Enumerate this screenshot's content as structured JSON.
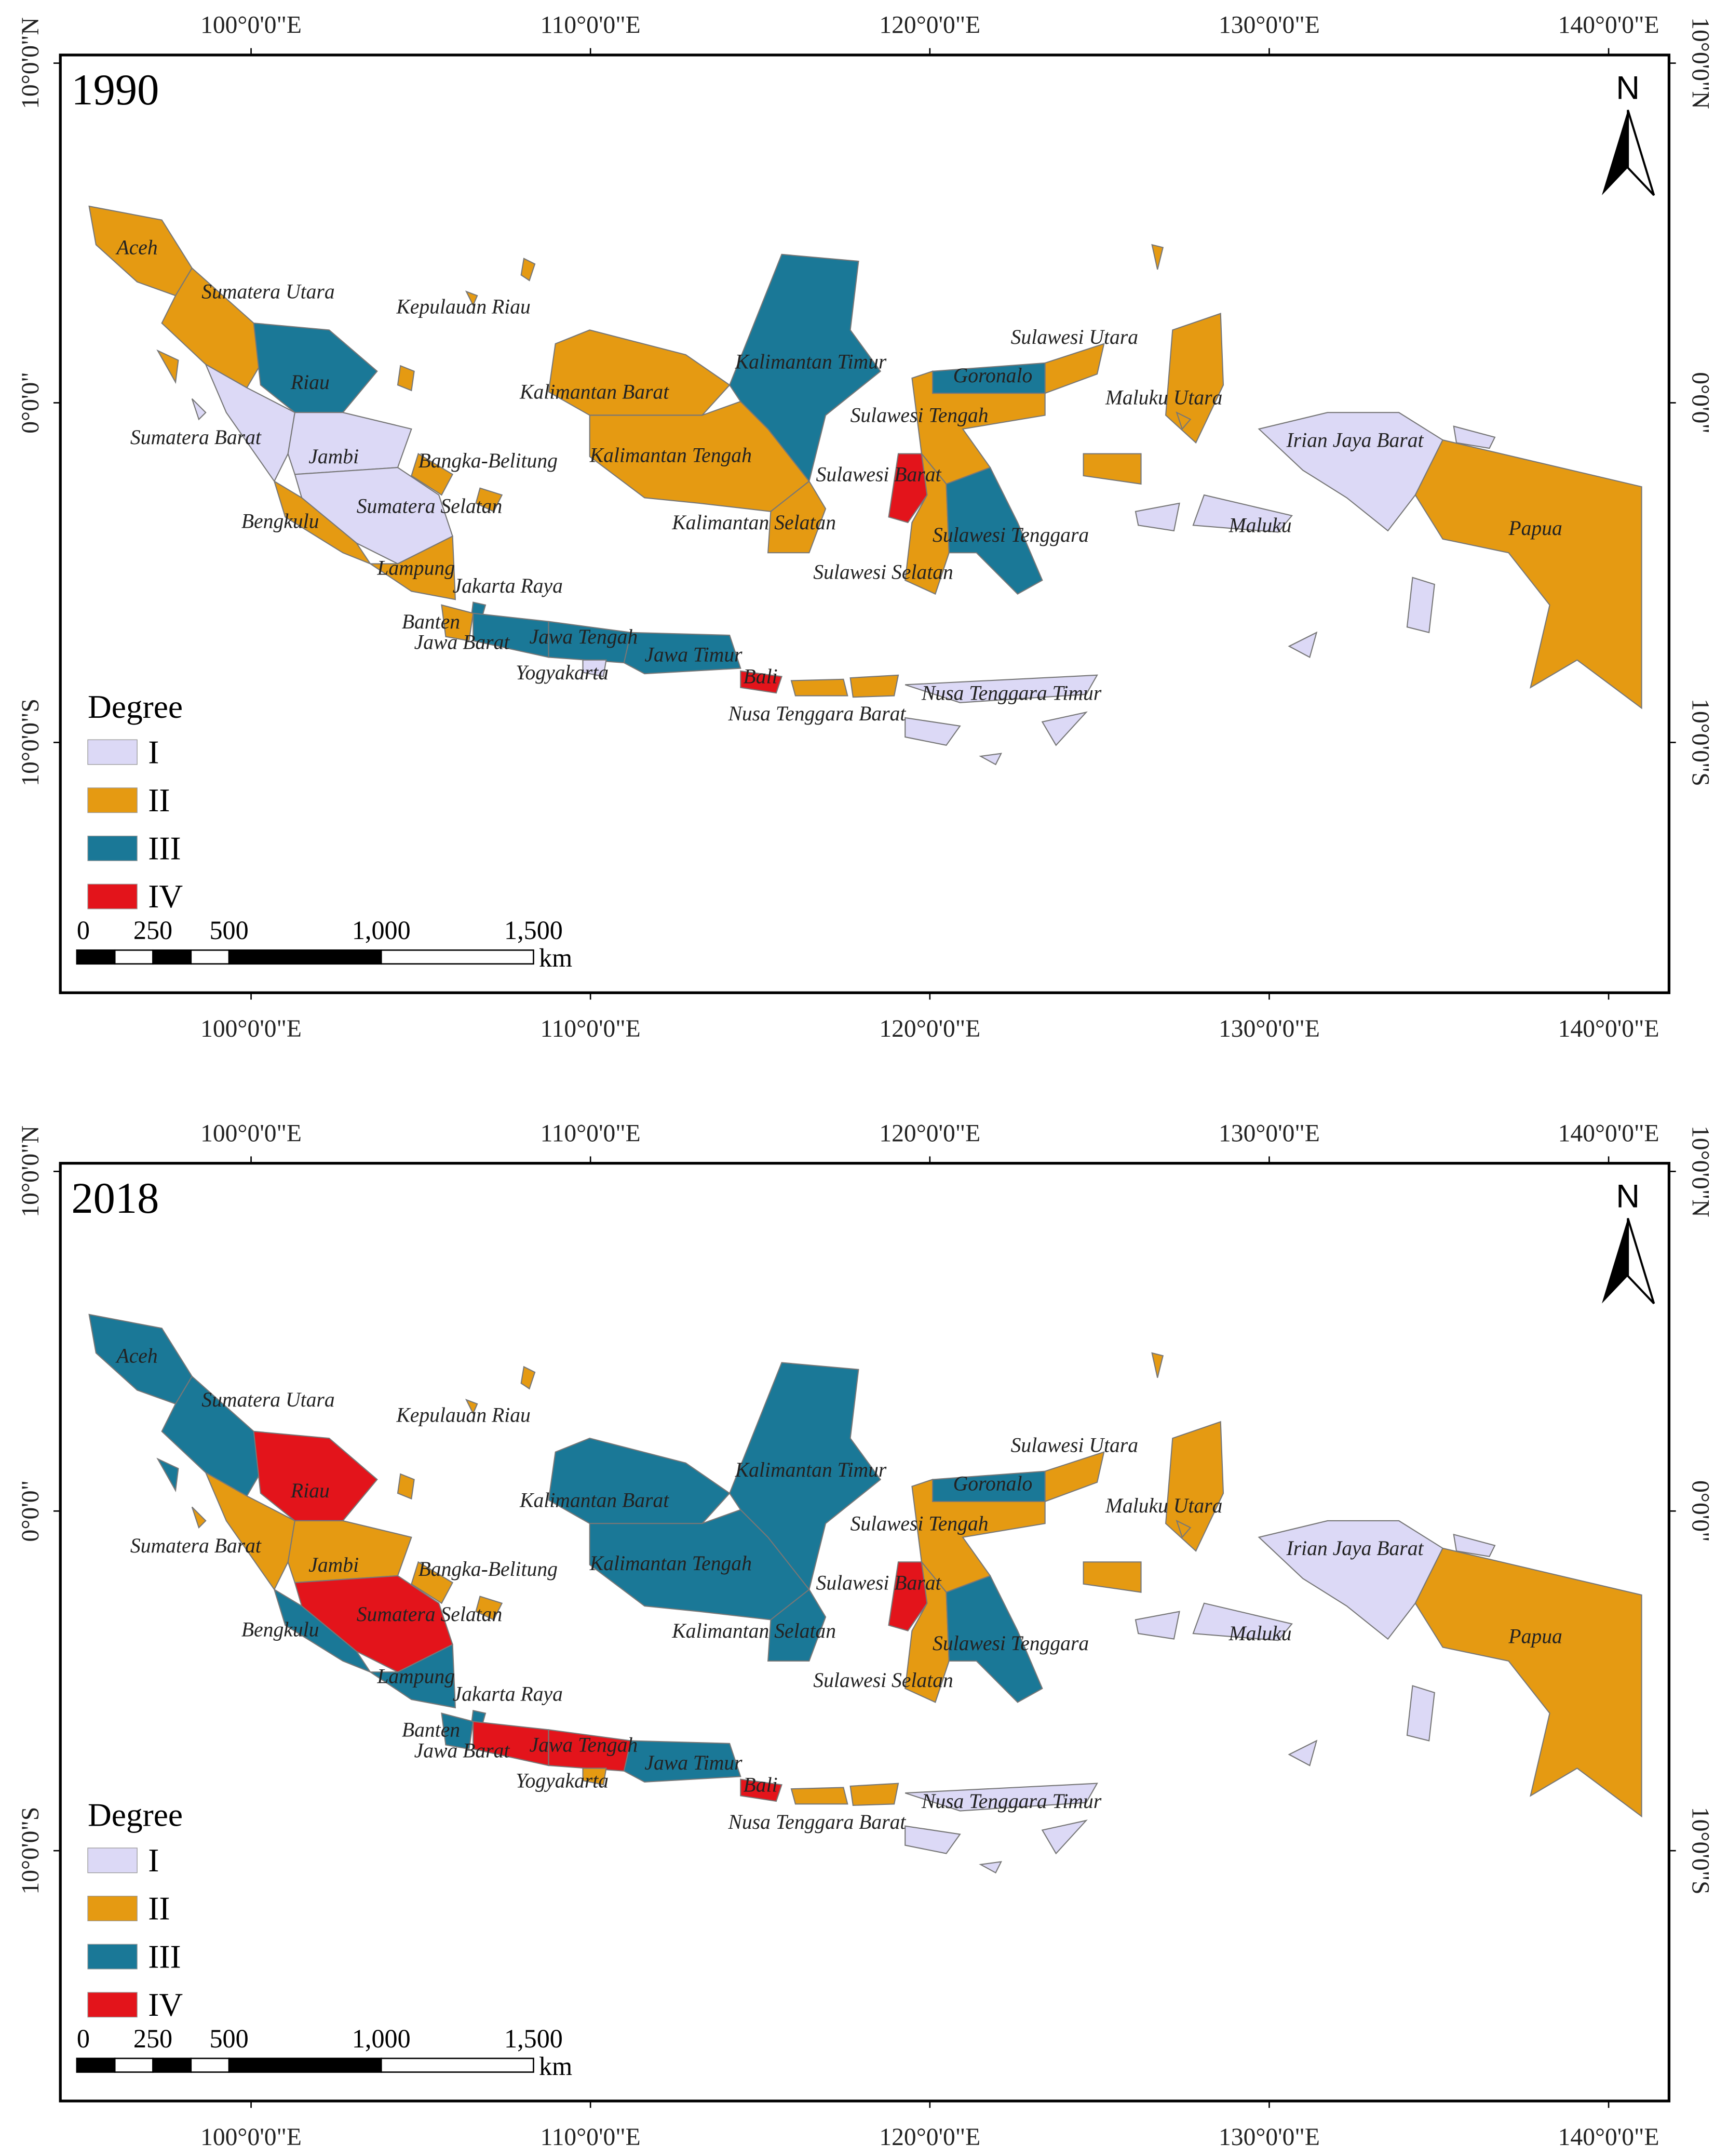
{
  "maps": [
    {
      "title": "1990",
      "lon_range": [
        94.38,
        141.78
      ],
      "lat_range": [
        10.24,
        -17.37
      ],
      "lon_ticks": [
        {
          "value": 100,
          "label": "100°0'0\"E"
        },
        {
          "value": 110,
          "label": "110°0'0\"E"
        },
        {
          "value": 120,
          "label": "120°0'0\"E"
        },
        {
          "value": 130,
          "label": "130°0'0\"E"
        },
        {
          "value": 140,
          "label": "140°0'0\"E"
        }
      ],
      "lat_ticks": [
        {
          "value": 10,
          "label": "10°0'0\"N"
        },
        {
          "value": 0,
          "label": "0°0'0\""
        },
        {
          "value": -10,
          "label": "10°0'0\"S"
        }
      ],
      "north": "N",
      "legend": {
        "title": "Degree",
        "items": [
          {
            "label": "I",
            "color": "#dcd9f6"
          },
          {
            "label": "II",
            "color": "#e59a12"
          },
          {
            "label": "III",
            "color": "#1a7897"
          },
          {
            "label": "IV",
            "color": "#e3141b"
          }
        ]
      },
      "scale_bar": {
        "ticks": [
          0,
          250,
          500,
          {
            "value": 1000,
            "label": "1,000"
          },
          {
            "value": 1500,
            "label": "1,500"
          }
        ],
        "unit": "km"
      },
      "provinces": [
        {
          "name": "Aceh",
          "degree": "II"
        },
        {
          "name": "Sumatera Utara",
          "degree": "II"
        },
        {
          "name": "Riau",
          "degree": "III"
        },
        {
          "name": "Sumatera Barat",
          "degree": "I"
        },
        {
          "name": "Jambi",
          "degree": "I"
        },
        {
          "name": "Sumatera Selatan",
          "degree": "I"
        },
        {
          "name": "Bengkulu",
          "degree": "II"
        },
        {
          "name": "Lampung",
          "degree": "II"
        },
        {
          "name": "Bangka-Belitung",
          "degree": "II"
        },
        {
          "name": "Kepulauan Riau",
          "degree": "II"
        },
        {
          "name": "Jakarta Raya",
          "degree": "III"
        },
        {
          "name": "Banten",
          "degree": "II"
        },
        {
          "name": "Jawa Barat",
          "degree": "III"
        },
        {
          "name": "Jawa Tengah",
          "degree": "III"
        },
        {
          "name": "Yogyakarta",
          "degree": "I"
        },
        {
          "name": "Jawa Timur",
          "degree": "III"
        },
        {
          "name": "Bali",
          "degree": "IV"
        },
        {
          "name": "Nusa Tenggara Barat",
          "degree": "II"
        },
        {
          "name": "Nusa Tenggara Timur",
          "degree": "I"
        },
        {
          "name": "Kalimantan Barat",
          "degree": "II"
        },
        {
          "name": "Kalimantan Tengah",
          "degree": "II"
        },
        {
          "name": "Kalimantan Timur",
          "degree": "III"
        },
        {
          "name": "Kalimantan Selatan",
          "degree": "II"
        },
        {
          "name": "Sulawesi Utara",
          "degree": "II"
        },
        {
          "name": "Goronalo",
          "degree": "III"
        },
        {
          "name": "Sulawesi Tengah",
          "degree": "II"
        },
        {
          "name": "Sulawesi Barat",
          "degree": "IV"
        },
        {
          "name": "Sulawesi Selatan",
          "degree": "II"
        },
        {
          "name": "Sulawesi Tenggara",
          "degree": "III"
        },
        {
          "name": "Maluku Utara",
          "degree": "II"
        },
        {
          "name": "Maluku",
          "degree": "I"
        },
        {
          "name": "Irian Jaya Barat",
          "degree": "I"
        },
        {
          "name": "Papua",
          "degree": "II"
        }
      ]
    },
    {
      "title": "2018",
      "lon_range": [
        94.38,
        141.78
      ],
      "lat_range": [
        10.24,
        -17.37
      ],
      "lon_ticks": [
        {
          "value": 100,
          "label": "100°0'0\"E"
        },
        {
          "value": 110,
          "label": "110°0'0\"E"
        },
        {
          "value": 120,
          "label": "120°0'0\"E"
        },
        {
          "value": 130,
          "label": "130°0'0\"E"
        },
        {
          "value": 140,
          "label": "140°0'0\"E"
        }
      ],
      "lat_ticks": [
        {
          "value": 10,
          "label": "10°0'0\"N"
        },
        {
          "value": 0,
          "label": "0°0'0\""
        },
        {
          "value": -10,
          "label": "10°0'0\"S"
        }
      ],
      "north": "N",
      "legend": {
        "title": "Degree",
        "items": [
          {
            "label": "I",
            "color": "#dcd9f6"
          },
          {
            "label": "II",
            "color": "#e59a12"
          },
          {
            "label": "III",
            "color": "#1a7897"
          },
          {
            "label": "IV",
            "color": "#e3141b"
          }
        ]
      },
      "scale_bar": {
        "ticks": [
          0,
          250,
          500,
          {
            "value": 1000,
            "label": "1,000"
          },
          {
            "value": 1500,
            "label": "1,500"
          }
        ],
        "unit": "km"
      },
      "provinces": [
        {
          "name": "Aceh",
          "degree": "III"
        },
        {
          "name": "Sumatera Utara",
          "degree": "III"
        },
        {
          "name": "Riau",
          "degree": "IV"
        },
        {
          "name": "Sumatera Barat",
          "degree": "II"
        },
        {
          "name": "Jambi",
          "degree": "II"
        },
        {
          "name": "Sumatera Selatan",
          "degree": "IV"
        },
        {
          "name": "Bengkulu",
          "degree": "III"
        },
        {
          "name": "Lampung",
          "degree": "III"
        },
        {
          "name": "Bangka-Belitung",
          "degree": "II"
        },
        {
          "name": "Kepulauan Riau",
          "degree": "II"
        },
        {
          "name": "Jakarta Raya",
          "degree": "III"
        },
        {
          "name": "Banten",
          "degree": "III"
        },
        {
          "name": "Jawa Barat",
          "degree": "IV"
        },
        {
          "name": "Jawa Tengah",
          "degree": "IV"
        },
        {
          "name": "Yogyakarta",
          "degree": "II"
        },
        {
          "name": "Jawa Timur",
          "degree": "III"
        },
        {
          "name": "Bali",
          "degree": "IV"
        },
        {
          "name": "Nusa Tenggara Barat",
          "degree": "II"
        },
        {
          "name": "Nusa Tenggara Timur",
          "degree": "I"
        },
        {
          "name": "Kalimantan Barat",
          "degree": "III"
        },
        {
          "name": "Kalimantan Tengah",
          "degree": "III"
        },
        {
          "name": "Kalimantan Timur",
          "degree": "III"
        },
        {
          "name": "Kalimantan Selatan",
          "degree": "III"
        },
        {
          "name": "Sulawesi Utara",
          "degree": "II"
        },
        {
          "name": "Goronalo",
          "degree": "III"
        },
        {
          "name": "Sulawesi Tengah",
          "degree": "II"
        },
        {
          "name": "Sulawesi Barat",
          "degree": "IV"
        },
        {
          "name": "Sulawesi Selatan",
          "degree": "II"
        },
        {
          "name": "Sulawesi Tenggara",
          "degree": "III"
        },
        {
          "name": "Maluku Utara",
          "degree": "II"
        },
        {
          "name": "Maluku",
          "degree": "I"
        },
        {
          "name": "Irian Jaya Barat",
          "degree": "I"
        },
        {
          "name": "Papua",
          "degree": "II"
        }
      ]
    }
  ]
}
